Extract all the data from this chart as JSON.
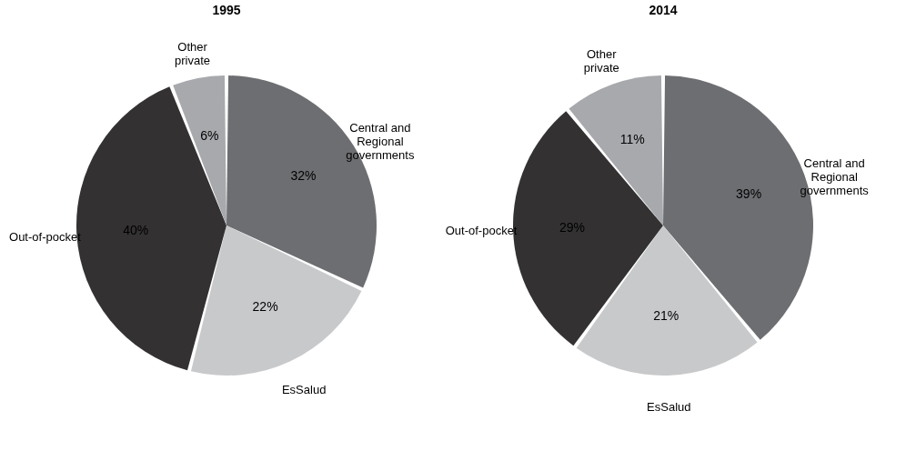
{
  "chart_data": [
    {
      "type": "pie",
      "title": "1995",
      "categories": [
        "Central and Regional governments",
        "EsSalud",
        "Out-of-pocket",
        "Other private"
      ],
      "values": [
        32,
        22,
        40,
        6
      ],
      "colors": [
        "#6d6e71",
        "#c8c9cb",
        "#333132",
        "#a7a9ac"
      ],
      "value_labels": [
        "32%",
        "22%",
        "40%",
        "6%"
      ],
      "legend": false
    },
    {
      "type": "pie",
      "title": "2014",
      "categories": [
        "Central and Regional governments",
        "EsSalud",
        "Out-of-pocket",
        "Other private"
      ],
      "values": [
        39,
        21,
        29,
        11
      ],
      "colors": [
        "#6d6e71",
        "#c8c9cb",
        "#333132",
        "#a7a9ac"
      ],
      "value_labels": [
        "39%",
        "21%",
        "29%",
        "11%"
      ],
      "legend": false
    }
  ]
}
